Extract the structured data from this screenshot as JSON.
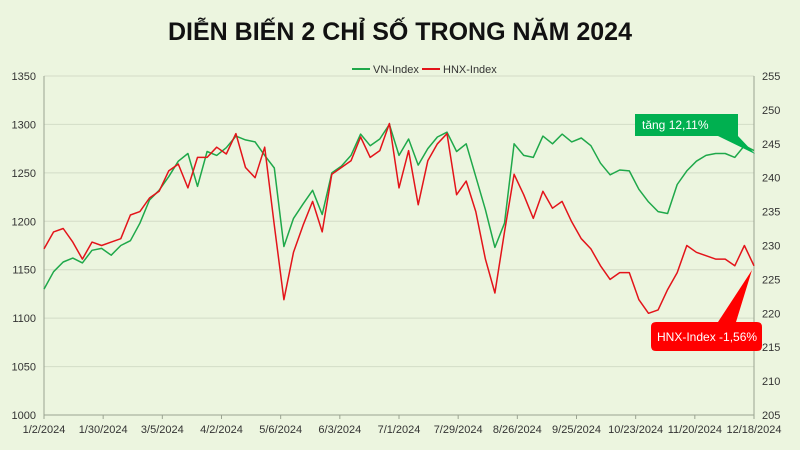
{
  "chart_data": {
    "type": "line",
    "title": "DIỄN BIẾN 2 CHỈ SỐ TRONG NĂM 2024",
    "x_labels": [
      "1/2/2024",
      "1/30/2024",
      "3/5/2024",
      "4/2/2024",
      "5/6/2024",
      "6/3/2024",
      "7/1/2024",
      "7/29/2024",
      "8/26/2024",
      "9/25/2024",
      "10/23/2024",
      "11/20/2024",
      "12/18/2024"
    ],
    "y_left": {
      "min": 1000,
      "max": 1350,
      "step": 50,
      "ticks": [
        "1000",
        "1050",
        "1100",
        "1150",
        "1200",
        "1250",
        "1300",
        "1350"
      ]
    },
    "y_right": {
      "min": 205,
      "max": 255,
      "step": 5,
      "ticks": [
        "205",
        "210",
        "215",
        "220",
        "225",
        "230",
        "235",
        "240",
        "245",
        "250",
        "255"
      ]
    },
    "legend": {
      "position": "top-center"
    },
    "series": [
      {
        "name": "VN-Index",
        "axis": "left",
        "color": "#1fa84a",
        "values": [
          1130,
          1148,
          1158,
          1162,
          1157,
          1170,
          1172,
          1165,
          1175,
          1180,
          1198,
          1222,
          1232,
          1246,
          1262,
          1270,
          1236,
          1272,
          1268,
          1276,
          1288,
          1284,
          1282,
          1268,
          1255,
          1174,
          1203,
          1218,
          1232,
          1207,
          1250,
          1257,
          1268,
          1290,
          1278,
          1285,
          1300,
          1268,
          1285,
          1258,
          1275,
          1287,
          1292,
          1272,
          1280,
          1246,
          1212,
          1173,
          1198,
          1280,
          1268,
          1266,
          1288,
          1280,
          1290,
          1282,
          1286,
          1278,
          1260,
          1248,
          1253,
          1252,
          1233,
          1220,
          1210,
          1208,
          1238,
          1252,
          1262,
          1268,
          1270,
          1270,
          1266,
          1278,
          1273
        ]
      },
      {
        "name": "HNX-Index",
        "axis": "right",
        "color": "#e3141a",
        "values": [
          229.5,
          232.0,
          232.5,
          230.5,
          228.0,
          230.5,
          230.0,
          230.5,
          231.0,
          234.5,
          235.0,
          237.0,
          238.0,
          241.0,
          242.0,
          238.5,
          243.0,
          243.0,
          244.5,
          243.5,
          246.5,
          241.5,
          240.0,
          244.5,
          233.0,
          222.0,
          229.0,
          233.0,
          236.5,
          232.0,
          240.5,
          241.5,
          242.5,
          246.0,
          243.0,
          244.0,
          248.0,
          238.5,
          244.0,
          236.0,
          242.5,
          245.0,
          246.5,
          237.5,
          239.5,
          235.0,
          228.0,
          223.0,
          232.0,
          240.5,
          237.5,
          234.0,
          238.0,
          235.5,
          236.5,
          233.5,
          231.0,
          229.5,
          227.0,
          225.0,
          226.0,
          226.0,
          222.0,
          220.0,
          220.5,
          223.5,
          226.0,
          230.0,
          229.0,
          228.5,
          228.0,
          228.0,
          227.0,
          230.0,
          227.0
        ]
      }
    ],
    "annotations": [
      {
        "text": "tăng 12,11%",
        "series": "VN-Index",
        "color": "#00b050"
      },
      {
        "text": "HNX-Index -1,56%",
        "series": "HNX-Index",
        "color": "#ff0000"
      }
    ]
  }
}
